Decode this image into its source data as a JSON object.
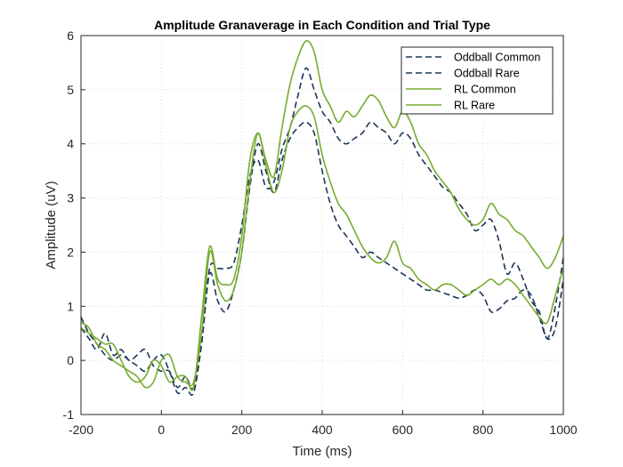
{
  "chart_data": {
    "type": "line",
    "title": "Amplitude Granaverage in Each Condition and Trial Type",
    "xlabel": "Time (ms)",
    "ylabel": "Amplitude (uV)",
    "xlim": [
      -200,
      1000
    ],
    "ylim": [
      -1,
      6
    ],
    "xticks": [
      -200,
      0,
      200,
      400,
      600,
      800,
      1000
    ],
    "yticks": [
      -1,
      0,
      1,
      2,
      3,
      4,
      5,
      6
    ],
    "grid": true,
    "legend_position": "top-right",
    "colors": {
      "oddball": "#1c3557",
      "rl": "#77ac30"
    },
    "series": [
      {
        "name": "Oddball Common",
        "style": "dashed",
        "x": [
          -200,
          -180,
          -160,
          -140,
          -120,
          -100,
          -80,
          -60,
          -40,
          -20,
          0,
          20,
          40,
          60,
          80,
          100,
          120,
          140,
          160,
          180,
          200,
          220,
          240,
          260,
          280,
          300,
          320,
          340,
          360,
          380,
          400,
          420,
          440,
          460,
          480,
          500,
          520,
          540,
          560,
          580,
          600,
          620,
          640,
          660,
          680,
          700,
          720,
          740,
          760,
          780,
          800,
          820,
          840,
          860,
          880,
          900,
          920,
          940,
          960,
          980,
          1000
        ],
        "y": [
          0.6,
          0.4,
          0.2,
          0.5,
          0.1,
          0.2,
          0.0,
          0.1,
          0.2,
          -0.1,
          -0.2,
          -0.2,
          -0.5,
          -0.3,
          -0.5,
          0.4,
          1.7,
          1.7,
          1.7,
          1.8,
          2.5,
          3.4,
          3.7,
          3.2,
          3.3,
          3.9,
          4.3,
          4.9,
          5.4,
          5.0,
          4.6,
          4.4,
          4.1,
          4.0,
          4.1,
          4.2,
          4.4,
          4.3,
          4.2,
          4.0,
          4.2,
          4.1,
          3.8,
          3.6,
          3.4,
          3.2,
          3.1,
          2.9,
          2.7,
          2.4,
          2.5,
          2.6,
          2.2,
          1.6,
          1.8,
          1.5,
          1.1,
          0.9,
          0.4,
          1.0,
          1.9
        ]
      },
      {
        "name": "Oddball Rare",
        "style": "dashed",
        "x": [
          -200,
          -180,
          -160,
          -140,
          -120,
          -100,
          -80,
          -60,
          -40,
          -20,
          0,
          20,
          40,
          60,
          80,
          100,
          120,
          140,
          160,
          180,
          200,
          220,
          240,
          260,
          280,
          300,
          320,
          340,
          360,
          380,
          400,
          420,
          440,
          460,
          480,
          500,
          520,
          540,
          560,
          580,
          600,
          620,
          640,
          660,
          680,
          700,
          720,
          740,
          760,
          780,
          800,
          820,
          840,
          860,
          880,
          900,
          920,
          940,
          960,
          980,
          1000
        ],
        "y": [
          0.8,
          0.5,
          0.3,
          0.1,
          0.0,
          0.1,
          0.0,
          -0.1,
          -0.2,
          0.0,
          0.1,
          -0.2,
          -0.6,
          -0.5,
          -0.6,
          0.3,
          1.6,
          1.1,
          0.9,
          1.3,
          2.0,
          3.2,
          4.0,
          3.5,
          3.1,
          3.7,
          4.1,
          4.3,
          4.4,
          4.2,
          3.5,
          2.9,
          2.5,
          2.3,
          2.1,
          1.9,
          2.0,
          1.9,
          1.8,
          1.7,
          1.6,
          1.5,
          1.4,
          1.3,
          1.3,
          1.25,
          1.2,
          1.15,
          1.2,
          1.3,
          1.2,
          0.9,
          0.95,
          1.1,
          1.15,
          1.3,
          1.2,
          0.8,
          0.4,
          0.6,
          1.5
        ]
      },
      {
        "name": "RL Common",
        "style": "solid",
        "x": [
          -200,
          -180,
          -160,
          -140,
          -120,
          -100,
          -80,
          -60,
          -40,
          -20,
          0,
          20,
          40,
          60,
          80,
          100,
          120,
          140,
          160,
          180,
          200,
          220,
          240,
          260,
          280,
          300,
          320,
          340,
          360,
          380,
          400,
          420,
          440,
          460,
          480,
          500,
          520,
          540,
          560,
          580,
          600,
          620,
          640,
          660,
          680,
          700,
          720,
          740,
          760,
          780,
          800,
          820,
          840,
          860,
          880,
          900,
          920,
          940,
          960,
          980,
          1000
        ],
        "y": [
          0.6,
          0.5,
          0.4,
          0.3,
          0.3,
          0.0,
          -0.3,
          -0.4,
          -0.3,
          0.0,
          -0.1,
          -0.4,
          -0.3,
          -0.3,
          -0.5,
          0.8,
          2.1,
          1.5,
          1.4,
          1.5,
          2.3,
          3.7,
          4.2,
          3.7,
          3.4,
          4.3,
          5.1,
          5.6,
          5.9,
          5.7,
          5.0,
          4.7,
          4.4,
          4.6,
          4.5,
          4.7,
          4.9,
          4.8,
          4.5,
          4.3,
          4.6,
          4.4,
          4.0,
          3.8,
          3.5,
          3.3,
          3.1,
          2.8,
          2.6,
          2.5,
          2.6,
          2.9,
          2.7,
          2.6,
          2.4,
          2.3,
          2.1,
          1.9,
          1.7,
          1.9,
          2.3
        ]
      },
      {
        "name": "RL Rare",
        "style": "solid",
        "x": [
          -200,
          -180,
          -160,
          -140,
          -120,
          -100,
          -80,
          -60,
          -40,
          -20,
          0,
          20,
          40,
          60,
          80,
          100,
          120,
          140,
          160,
          180,
          200,
          220,
          240,
          260,
          280,
          300,
          320,
          340,
          360,
          380,
          400,
          420,
          440,
          460,
          480,
          500,
          520,
          540,
          560,
          580,
          600,
          620,
          640,
          660,
          680,
          700,
          720,
          740,
          760,
          780,
          800,
          820,
          840,
          860,
          880,
          900,
          920,
          940,
          960,
          980,
          1000
        ],
        "y": [
          0.7,
          0.6,
          0.3,
          0.2,
          0.0,
          -0.1,
          -0.2,
          -0.3,
          -0.5,
          -0.4,
          0.0,
          0.1,
          -0.3,
          -0.4,
          -0.4,
          0.5,
          2.0,
          1.4,
          1.1,
          1.3,
          2.0,
          3.3,
          4.2,
          3.6,
          3.1,
          3.5,
          4.3,
          4.6,
          4.7,
          4.5,
          3.8,
          3.3,
          2.9,
          2.7,
          2.4,
          2.1,
          1.9,
          1.8,
          1.9,
          2.2,
          1.8,
          1.7,
          1.5,
          1.4,
          1.3,
          1.4,
          1.4,
          1.3,
          1.2,
          1.3,
          1.4,
          1.5,
          1.4,
          1.5,
          1.4,
          1.2,
          1.0,
          0.8,
          0.7,
          1.2,
          1.7
        ]
      }
    ]
  }
}
